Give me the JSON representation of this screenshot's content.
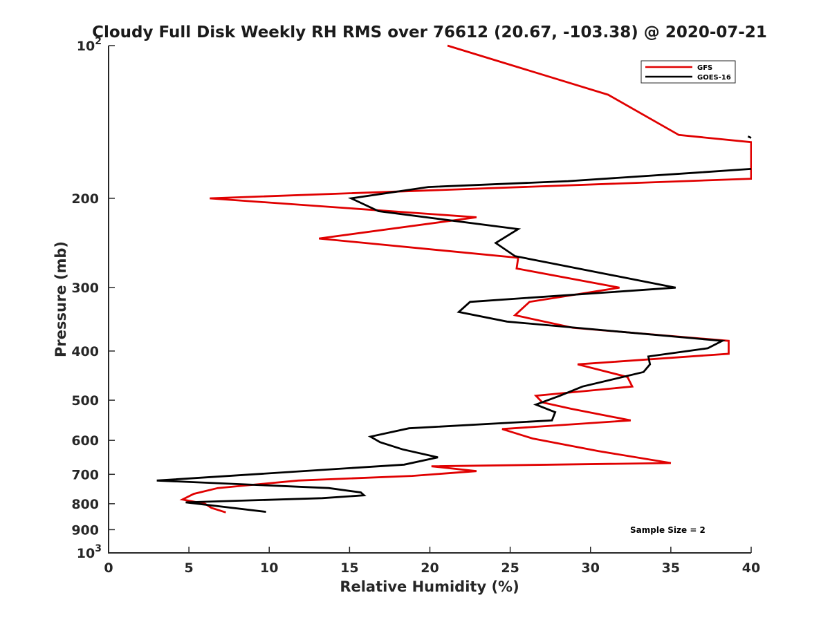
{
  "chart_data": {
    "type": "line",
    "title": "Cloudy Full Disk Weekly RH RMS over 76612 (20.67, -103.38) @ 2020-07-21",
    "xlabel": "Relative Humidity (%)",
    "ylabel": "Pressure (mb)",
    "xlim": [
      0,
      40
    ],
    "ylim": [
      100,
      1000
    ],
    "yscale": "log",
    "yreversed": true,
    "x_ticks": [
      "0",
      "5",
      "10",
      "15",
      "20",
      "25",
      "30",
      "35",
      "40"
    ],
    "y_ticks": [
      {
        "value": 100,
        "base": "10",
        "exp": "2"
      },
      {
        "value": 200,
        "label": "200"
      },
      {
        "value": 300,
        "label": "300"
      },
      {
        "value": 400,
        "label": "400"
      },
      {
        "value": 500,
        "label": "500"
      },
      {
        "value": 600,
        "label": "600"
      },
      {
        "value": 700,
        "label": "700"
      },
      {
        "value": 800,
        "label": "800"
      },
      {
        "value": 900,
        "label": "900"
      },
      {
        "value": 1000,
        "base": "10",
        "exp": "3"
      }
    ],
    "legend_position": "top-right",
    "annotation": "Sample Size = 2",
    "series": [
      {
        "name": "GFS",
        "color": "#e00000",
        "points": [
          [
            21.1,
            100
          ],
          [
            31.1,
            125
          ],
          [
            35.5,
            150
          ],
          [
            40,
            155
          ],
          [
            40,
            183
          ],
          [
            6.3,
            200
          ],
          [
            22.9,
            218
          ],
          [
            13.1,
            240
          ],
          [
            25.5,
            262
          ],
          [
            25.4,
            275
          ],
          [
            31.8,
            300
          ],
          [
            26.2,
            320
          ],
          [
            25.3,
            340
          ],
          [
            28.9,
            360
          ],
          [
            38.6,
            382
          ],
          [
            38.6,
            405
          ],
          [
            29.2,
            425
          ],
          [
            32.3,
            450
          ],
          [
            32.6,
            470
          ],
          [
            26.6,
            490
          ],
          [
            27.0,
            505
          ],
          [
            28.8,
            520
          ],
          [
            32.5,
            548
          ],
          [
            24.5,
            570
          ],
          [
            26.4,
            595
          ],
          [
            30.5,
            630
          ],
          [
            35.0,
            665
          ],
          [
            20.1,
            675
          ],
          [
            22.9,
            690
          ],
          [
            18.9,
            705
          ],
          [
            11.8,
            720
          ],
          [
            6.8,
            745
          ],
          [
            5.3,
            765
          ],
          [
            4.6,
            785
          ],
          [
            6.0,
            800
          ],
          [
            6.4,
            815
          ],
          [
            7.3,
            832
          ]
        ]
      },
      {
        "name": "GOES-16",
        "color": "#000000",
        "segments": [
          [
            [
              40,
              152
            ],
            [
              39.8,
              151
            ]
          ],
          [
            [
              40,
              175
            ],
            [
              36.6,
              178
            ],
            [
              28.6,
              185
            ],
            [
              19.9,
              190
            ],
            [
              15.1,
              200
            ],
            [
              16.8,
              212
            ],
            [
              25.5,
              230
            ],
            [
              24.1,
              245
            ],
            [
              25.3,
              260
            ],
            [
              35.3,
              300
            ],
            [
              22.5,
              320
            ],
            [
              21.8,
              335
            ],
            [
              24.8,
              350
            ],
            [
              38.2,
              382
            ],
            [
              37.3,
              395
            ],
            [
              33.6,
              410
            ],
            [
              33.7,
              425
            ],
            [
              33.3,
              440
            ],
            [
              29.5,
              470
            ],
            [
              28.1,
              490
            ],
            [
              26.6,
              510
            ],
            [
              27.8,
              528
            ],
            [
              27.6,
              548
            ],
            [
              18.7,
              568
            ],
            [
              16.3,
              590
            ],
            [
              16.9,
              605
            ],
            [
              18.3,
              625
            ],
            [
              20.5,
              648
            ],
            [
              18.4,
              670
            ],
            [
              3.0,
              720
            ],
            [
              13.7,
              745
            ],
            [
              15.7,
              760
            ],
            [
              15.9,
              770
            ],
            [
              13.3,
              780
            ],
            [
              4.8,
              795
            ],
            [
              9.8,
              830
            ]
          ]
        ]
      }
    ]
  }
}
